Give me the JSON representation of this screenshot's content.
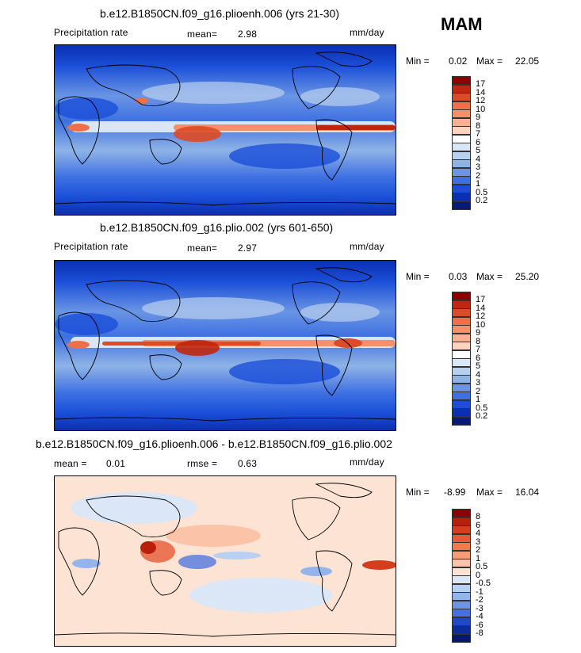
{
  "season": "MAM",
  "panels": [
    {
      "title": "b.e12.B1850CN.f09_g16.plioenh.006 (yrs 21-30)",
      "variable": "Precipitation rate",
      "mean_label": "mean=",
      "mean_value": "2.98",
      "units": "mm/day",
      "min_label": "Min =",
      "min_value": "0.02",
      "max_label": "Max =",
      "max_value": "22.05"
    },
    {
      "title": "b.e12.B1850CN.f09_g16.plio.002 (yrs 601-650)",
      "variable": "Precipitation rate",
      "mean_label": "mean=",
      "mean_value": "2.97",
      "units": "mm/day",
      "min_label": "Min =",
      "min_value": "0.03",
      "max_label": "Max =",
      "max_value": "25.20"
    },
    {
      "title": "b.e12.B1850CN.f09_g16.plioenh.006 - b.e12.B1850CN.f09_g16.plio.002",
      "mean_label": "mean =",
      "mean_value": "0.01",
      "rmse_label": "rmse =",
      "rmse_value": "0.63",
      "units": "mm/day",
      "min_label": "Min =",
      "min_value": "-8.99",
      "max_label": "Max =",
      "max_value": "16.04"
    }
  ],
  "chart_data": [
    {
      "type": "heatmap",
      "title": "b.e12.B1850CN.f09_g16.plioenh.006 (yrs 21-30)",
      "variable": "Precipitation rate",
      "units": "mm/day",
      "mean": 2.98,
      "min": 0.02,
      "max": 22.05,
      "colorbar_levels": [
        "17",
        "14",
        "12",
        "10",
        "9",
        "8",
        "7",
        "6",
        "5",
        "4",
        "3",
        "2",
        "1",
        "0.5",
        "0.2"
      ],
      "colorbar_colors": [
        "#8b0000",
        "#c1270d",
        "#de4a24",
        "#ef6f48",
        "#f6906b",
        "#fbb094",
        "#fdd3bf",
        "#ffffff",
        "#d9e6f7",
        "#b9cfee",
        "#8fb3e6",
        "#6a95e4",
        "#3e70e2",
        "#1a4ed8",
        "#0b2fb0",
        "#071a78"
      ],
      "tick_labels_shown": [
        "17",
        "14",
        "12",
        "10",
        "9",
        "8",
        "7",
        "6",
        "5",
        "4",
        "3",
        "2",
        "1",
        "0.5",
        "0.2"
      ]
    },
    {
      "type": "heatmap",
      "title": "b.e12.B1850CN.f09_g16.plio.002 (yrs 601-650)",
      "variable": "Precipitation rate",
      "units": "mm/day",
      "mean": 2.97,
      "min": 0.03,
      "max": 25.2,
      "colorbar_levels": [
        "17",
        "14",
        "12",
        "10",
        "9",
        "8",
        "7",
        "6",
        "5",
        "4",
        "3",
        "2",
        "1",
        "0.5",
        "0.2"
      ],
      "colorbar_colors": [
        "#8b0000",
        "#c1270d",
        "#de4a24",
        "#ef6f48",
        "#f6906b",
        "#fbb094",
        "#fdd3bf",
        "#ffffff",
        "#d9e6f7",
        "#b9cfee",
        "#8fb3e6",
        "#6a95e4",
        "#3e70e2",
        "#1a4ed8",
        "#0b2fb0",
        "#071a78"
      ]
    },
    {
      "type": "heatmap",
      "title": "b.e12.B1850CN.f09_g16.plioenh.006 - b.e12.B1850CN.f09_g16.plio.002",
      "units": "mm/day",
      "mean": 0.01,
      "rmse": 0.63,
      "min": -8.99,
      "max": 16.04,
      "colorbar_levels": [
        "8",
        "6",
        "4",
        "3",
        "2",
        "1",
        "0.5",
        "0",
        "-0.5",
        "-1",
        "-2",
        "-3",
        "-4",
        "-6",
        "-8"
      ],
      "colorbar_colors": [
        "#8b0000",
        "#b8200d",
        "#d43d1e",
        "#e65a35",
        "#f2794f",
        "#f79c78",
        "#fbc3a8",
        "#fde3d4",
        "#dbe7f7",
        "#b8d0f1",
        "#93b5eb",
        "#6d95e6",
        "#4670df",
        "#2348c6",
        "#0b2ba0",
        "#06176e"
      ]
    }
  ]
}
